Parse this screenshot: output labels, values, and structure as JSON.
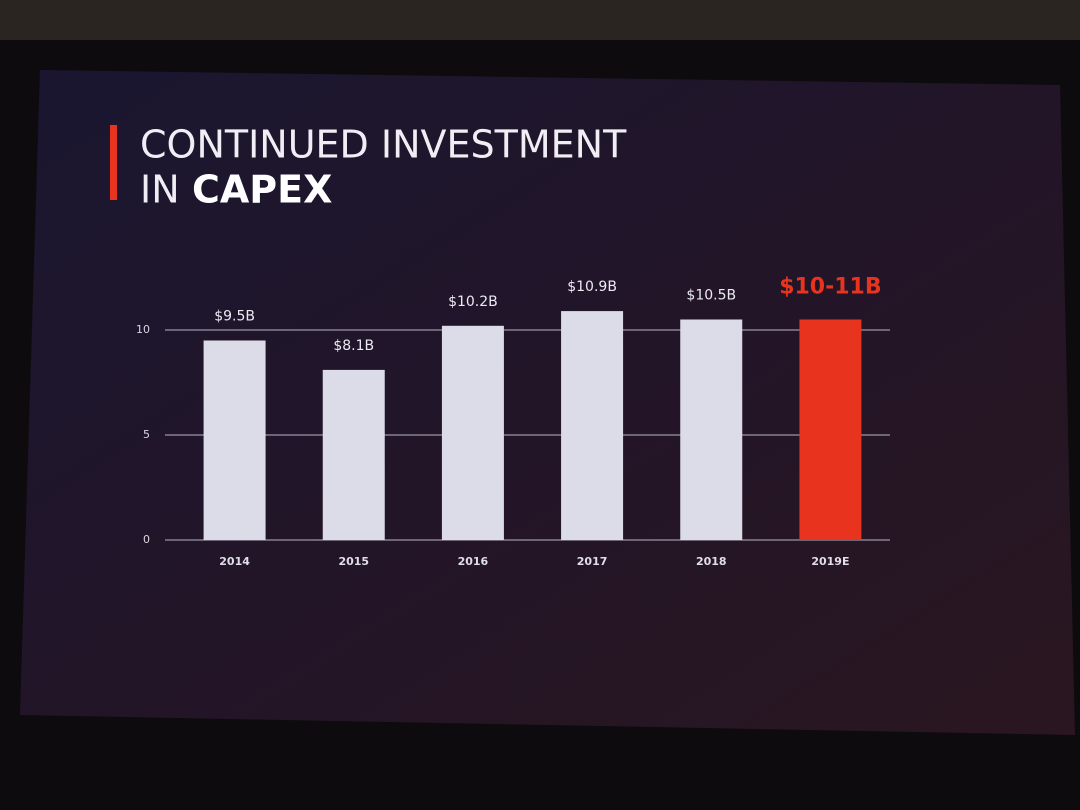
{
  "chart_data": {
    "type": "bar",
    "title_lines": [
      "CONTINUED INVESTMENT",
      "IN"
    ],
    "title_emphasis": "CAPEX",
    "categories": [
      "2014",
      "2015",
      "2016",
      "2017",
      "2018",
      "2019E"
    ],
    "values": [
      9.5,
      8.1,
      10.2,
      10.9,
      10.5,
      10.5
    ],
    "value_labels": [
      "$9.5B",
      "$8.1B",
      "$10.2B",
      "$10.9B",
      "$10.5B",
      "$10-11B"
    ],
    "colors": [
      "#dcdbe8",
      "#dcdbe8",
      "#dcdbe8",
      "#dcdbe8",
      "#dcdbe8",
      "#e8341f"
    ],
    "ylim": [
      0,
      12
    ],
    "yticks": [
      0,
      5,
      10
    ],
    "grid": true
  }
}
